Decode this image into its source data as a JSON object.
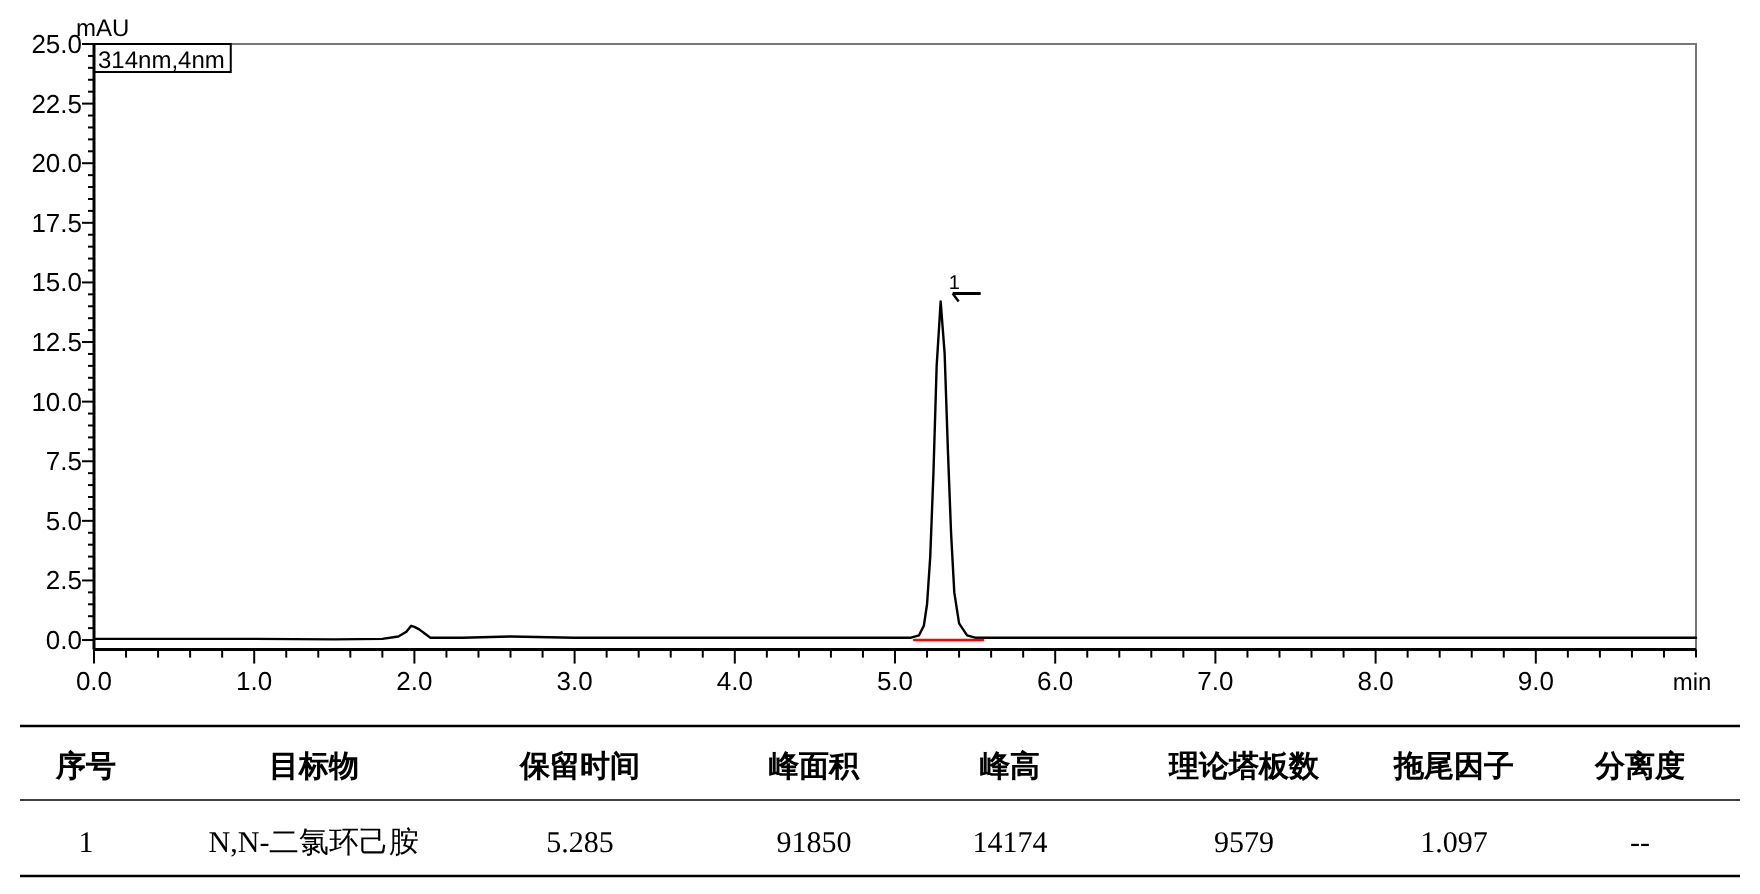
{
  "chart_data": {
    "type": "line",
    "xlabel": "min",
    "ylabel": "mAU",
    "annotations": [
      "314nm,4nm",
      {
        "text": "1",
        "x": 5.285,
        "y": 14.2
      },
      "序号",
      "目标物",
      "保留时间",
      "峰面积",
      "峰高",
      "理论塔板数",
      "拖尾因子",
      "分离度",
      "1",
      "N,N-二氯环己胺",
      "5.285",
      "91850",
      "14174",
      "9579",
      "1.097",
      "--"
    ],
    "series": [
      {
        "color": "#000000",
        "x": [
          0,
          0.5,
          1.0,
          1.5,
          1.8,
          1.9,
          1.95,
          1.98,
          2.0,
          2.03,
          2.06,
          2.1,
          2.3,
          2.6,
          3,
          4,
          5,
          5.1,
          5.15,
          5.18,
          5.2,
          5.22,
          5.24,
          5.26,
          5.285,
          5.31,
          5.33,
          5.35,
          5.37,
          5.4,
          5.45,
          5.5,
          6,
          7,
          8,
          9,
          10
        ],
        "values": [
          0.05,
          0.05,
          0.05,
          0.03,
          0.05,
          0.15,
          0.35,
          0.6,
          0.55,
          0.45,
          0.3,
          0.1,
          0.1,
          0.15,
          0.1,
          0.1,
          0.1,
          0.1,
          0.2,
          0.6,
          1.5,
          3.5,
          7,
          11.5,
          14.2,
          12,
          8,
          4.5,
          2,
          0.7,
          0.2,
          0.1,
          0.1,
          0.1,
          0.1,
          0.1,
          0.1
        ]
      },
      {
        "color": "#ff0000",
        "x": [
          5.12,
          5.55
        ],
        "values": [
          0.0,
          0.0
        ]
      }
    ],
    "xlim": [
      0,
      10
    ],
    "ylim": [
      -0.4,
      25
    ],
    "xticks": [
      {
        "value": 0,
        "label": "0.0"
      },
      {
        "value": 0.2,
        "label": null
      },
      {
        "value": 0.4,
        "label": null
      },
      {
        "value": 0.6,
        "label": null
      },
      {
        "value": 0.8,
        "label": null
      },
      {
        "value": 1,
        "label": "1.0"
      },
      {
        "value": 1.2,
        "label": null
      },
      {
        "value": 1.4,
        "label": null
      },
      {
        "value": 1.6,
        "label": null
      },
      {
        "value": 1.8,
        "label": null
      },
      {
        "value": 2,
        "label": "2.0"
      },
      {
        "value": 2.2,
        "label": null
      },
      {
        "value": 2.4,
        "label": null
      },
      {
        "value": 2.6,
        "label": null
      },
      {
        "value": 2.8,
        "label": null
      },
      {
        "value": 3,
        "label": "3.0"
      },
      {
        "value": 3.2,
        "label": null
      },
      {
        "value": 3.4,
        "label": null
      },
      {
        "value": 3.6,
        "label": null
      },
      {
        "value": 3.8,
        "label": null
      },
      {
        "value": 4,
        "label": "4.0"
      },
      {
        "value": 4.2,
        "label": null
      },
      {
        "value": 4.4,
        "label": null
      },
      {
        "value": 4.6,
        "label": null
      },
      {
        "value": 4.8,
        "label": null
      },
      {
        "value": 5,
        "label": "5.0"
      },
      {
        "value": 5.2,
        "label": null
      },
      {
        "value": 5.4,
        "label": null
      },
      {
        "value": 5.6,
        "label": null
      },
      {
        "value": 5.8,
        "label": null
      },
      {
        "value": 6,
        "label": "6.0"
      },
      {
        "value": 6.2,
        "label": null
      },
      {
        "value": 6.4,
        "label": null
      },
      {
        "value": 6.6,
        "label": null
      },
      {
        "value": 6.8,
        "label": null
      },
      {
        "value": 7,
        "label": "7.0"
      },
      {
        "value": 7.2,
        "label": null
      },
      {
        "value": 7.4,
        "label": null
      },
      {
        "value": 7.6,
        "label": null
      },
      {
        "value": 7.8,
        "label": null
      },
      {
        "value": 8,
        "label": "8.0"
      },
      {
        "value": 8.2,
        "label": null
      },
      {
        "value": 8.4,
        "label": null
      },
      {
        "value": 8.6,
        "label": null
      },
      {
        "value": 8.8,
        "label": null
      },
      {
        "value": 9,
        "label": "9.0"
      },
      {
        "value": 9.2,
        "label": null
      },
      {
        "value": 9.4,
        "label": null
      },
      {
        "value": 9.6,
        "label": null
      },
      {
        "value": 9.8,
        "label": null
      },
      {
        "value": 10,
        "label": null
      }
    ],
    "yticks": [
      {
        "value": 0,
        "label": "0.0"
      },
      {
        "value": 0.5,
        "label": null
      },
      {
        "value": 1,
        "label": null
      },
      {
        "value": 1.5,
        "label": null
      },
      {
        "value": 2,
        "label": null
      },
      {
        "value": 2.5,
        "label": "2.5"
      },
      {
        "value": 3,
        "label": null
      },
      {
        "value": 3.5,
        "label": null
      },
      {
        "value": 4,
        "label": null
      },
      {
        "value": 4.5,
        "label": null
      },
      {
        "value": 5,
        "label": "5.0"
      },
      {
        "value": 5.5,
        "label": null
      },
      {
        "value": 6,
        "label": null
      },
      {
        "value": 6.5,
        "label": null
      },
      {
        "value": 7,
        "label": null
      },
      {
        "value": 7.5,
        "label": "7.5"
      },
      {
        "value": 8,
        "label": null
      },
      {
        "value": 8.5,
        "label": null
      },
      {
        "value": 9,
        "label": null
      },
      {
        "value": 9.5,
        "label": null
      },
      {
        "value": 10,
        "label": "10.0"
      },
      {
        "value": 10.5,
        "label": null
      },
      {
        "value": 11,
        "label": null
      },
      {
        "value": 11.5,
        "label": null
      },
      {
        "value": 12,
        "label": null
      },
      {
        "value": 12.5,
        "label": "12.5"
      },
      {
        "value": 13,
        "label": null
      },
      {
        "value": 13.5,
        "label": null
      },
      {
        "value": 14,
        "label": null
      },
      {
        "value": 14.5,
        "label": null
      },
      {
        "value": 15,
        "label": "15.0"
      },
      {
        "value": 15.5,
        "label": null
      },
      {
        "value": 16,
        "label": null
      },
      {
        "value": 16.5,
        "label": null
      },
      {
        "value": 17,
        "label": null
      },
      {
        "value": 17.5,
        "label": "17.5"
      },
      {
        "value": 18,
        "label": null
      },
      {
        "value": 18.5,
        "label": null
      },
      {
        "value": 19,
        "label": null
      },
      {
        "value": 19.5,
        "label": null
      },
      {
        "value": 20,
        "label": "20.0"
      },
      {
        "value": 20.5,
        "label": null
      },
      {
        "value": 21,
        "label": null
      },
      {
        "value": 21.5,
        "label": null
      },
      {
        "value": 22,
        "label": null
      },
      {
        "value": 22.5,
        "label": "22.5"
      },
      {
        "value": 23,
        "label": null
      },
      {
        "value": 23.5,
        "label": null
      },
      {
        "value": 24,
        "label": null
      },
      {
        "value": 24.5,
        "label": null
      },
      {
        "value": 25,
        "label": "25.0"
      }
    ]
  }
}
